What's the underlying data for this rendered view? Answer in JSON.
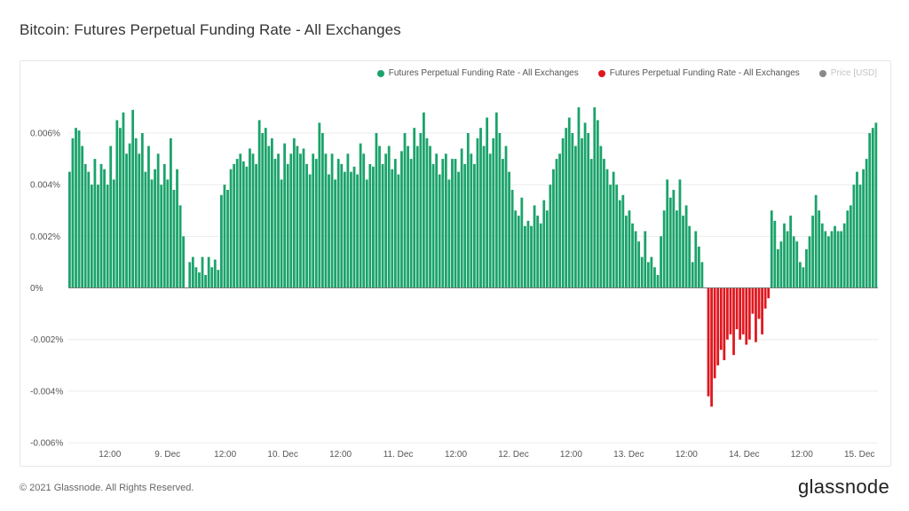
{
  "title": "Bitcoin: Futures Perpetual Funding Rate - All Exchanges",
  "legend": [
    {
      "label": "Futures Perpetual Funding Rate - All Exchanges",
      "color": "#1aa36a"
    },
    {
      "label": "Futures Perpetual Funding Rate - All Exchanges",
      "color": "#e0171f"
    },
    {
      "label": "Price [USD]",
      "color": "#8a8a8a"
    }
  ],
  "footer": {
    "copyright": "© 2021 Glassnode. All Rights Reserved.",
    "brand": "glassnode"
  },
  "chart_data": {
    "type": "bar",
    "title": "Bitcoin: Futures Perpetual Funding Rate - All Exchanges",
    "y_unit": "%",
    "ylim": [
      -0.0061,
      0.0071
    ],
    "y_ticks": [
      0.006,
      0.004,
      0.002,
      0,
      -0.002,
      -0.004,
      -0.006
    ],
    "y_tick_labels": [
      "0.006%",
      "0.004%",
      "0.002%",
      "0%",
      "-0.002%",
      "-0.004%",
      "-0.006%"
    ],
    "x_ticks": [
      {
        "t": 0.5,
        "label": "12:00"
      },
      {
        "t": 1.0,
        "label": "9. Dec"
      },
      {
        "t": 1.5,
        "label": "12:00"
      },
      {
        "t": 2.0,
        "label": "10. Dec"
      },
      {
        "t": 2.5,
        "label": "12:00"
      },
      {
        "t": 3.0,
        "label": "11. Dec"
      },
      {
        "t": 3.5,
        "label": "12:00"
      },
      {
        "t": 4.0,
        "label": "12. Dec"
      },
      {
        "t": 4.5,
        "label": "12:00"
      },
      {
        "t": 5.0,
        "label": "13. Dec"
      },
      {
        "t": 5.5,
        "label": "12:00"
      },
      {
        "t": 6.0,
        "label": "14. Dec"
      },
      {
        "t": 6.5,
        "label": "12:00"
      },
      {
        "t": 7.0,
        "label": "15. Dec"
      }
    ],
    "x_start": 0.14,
    "x_end": 7.16,
    "positive_color": "#1aa36a",
    "negative_color": "#e0171f",
    "grid": true,
    "legend_position": "top-right",
    "series": [
      {
        "name": "Futures Perpetual Funding Rate - All Exchanges",
        "values": [
          0.0045,
          0.0058,
          0.0062,
          0.0061,
          0.0055,
          0.0048,
          0.0045,
          0.004,
          0.005,
          0.004,
          0.0048,
          0.0046,
          0.004,
          0.0055,
          0.0042,
          0.0065,
          0.0062,
          0.0068,
          0.0052,
          0.0056,
          0.0069,
          0.0058,
          0.0052,
          0.006,
          0.0045,
          0.0055,
          0.0042,
          0.0046,
          0.0052,
          0.004,
          0.0048,
          0.0042,
          0.0058,
          0.0038,
          0.0046,
          0.0032,
          0.002,
          0.0,
          0.001,
          0.0012,
          0.0008,
          0.0006,
          0.0012,
          0.0005,
          0.0012,
          0.0008,
          0.0011,
          0.0007,
          0.0036,
          0.004,
          0.0038,
          0.0046,
          0.0048,
          0.005,
          0.0052,
          0.0049,
          0.0047,
          0.0054,
          0.0052,
          0.0048,
          0.0065,
          0.006,
          0.0062,
          0.0055,
          0.0058,
          0.005,
          0.0052,
          0.0042,
          0.0056,
          0.0048,
          0.0052,
          0.0058,
          0.0055,
          0.0052,
          0.0054,
          0.0048,
          0.0044,
          0.0052,
          0.005,
          0.0064,
          0.006,
          0.0052,
          0.0044,
          0.0052,
          0.0042,
          0.005,
          0.0048,
          0.0045,
          0.0052,
          0.0045,
          0.0047,
          0.0044,
          0.0056,
          0.0052,
          0.0042,
          0.0048,
          0.0047,
          0.006,
          0.0055,
          0.0048,
          0.0052,
          0.0055,
          0.0046,
          0.005,
          0.0044,
          0.0053,
          0.006,
          0.0055,
          0.005,
          0.0062,
          0.0055,
          0.006,
          0.0068,
          0.0058,
          0.0055,
          0.0048,
          0.0052,
          0.0044,
          0.005,
          0.0052,
          0.0042,
          0.005,
          0.005,
          0.0045,
          0.0054,
          0.0048,
          0.006,
          0.0052,
          0.0048,
          0.0058,
          0.0062,
          0.0055,
          0.0066,
          0.0052,
          0.0058,
          0.0068,
          0.006,
          0.005,
          0.0055,
          0.0045,
          0.0038,
          0.003,
          0.0028,
          0.0035,
          0.0024,
          0.0026,
          0.0024,
          0.0032,
          0.0028,
          0.0025,
          0.0034,
          0.003,
          0.004,
          0.0046,
          0.005,
          0.0052,
          0.0058,
          0.0062,
          0.0066,
          0.006,
          0.0055,
          0.007,
          0.0058,
          0.0064,
          0.006,
          0.005,
          0.007,
          0.0065,
          0.0055,
          0.005,
          0.0046,
          0.004,
          0.0045,
          0.004,
          0.0034,
          0.0036,
          0.0028,
          0.003,
          0.0025,
          0.0022,
          0.0018,
          0.0012,
          0.0022,
          0.001,
          0.0012,
          0.0008,
          0.0005,
          0.002,
          0.003,
          0.0042,
          0.0035,
          0.0038,
          0.003,
          0.0042,
          0.0028,
          0.0032,
          0.0024,
          0.001,
          0.0022,
          0.0016,
          0.001,
          0.0,
          -0.0042,
          -0.0046,
          -0.0035,
          -0.003,
          -0.0024,
          -0.0028,
          -0.002,
          -0.0018,
          -0.0026,
          -0.0016,
          -0.002,
          -0.0018,
          -0.0022,
          -0.002,
          -0.001,
          -0.0021,
          -0.0012,
          -0.0018,
          -0.0008,
          -0.0004,
          0.003,
          0.0026,
          0.0015,
          0.0018,
          0.0025,
          0.0022,
          0.0028,
          0.002,
          0.0018,
          0.001,
          0.0008,
          0.0015,
          0.002,
          0.0028,
          0.0036,
          0.003,
          0.0025,
          0.0022,
          0.002,
          0.0022,
          0.0024,
          0.0022,
          0.0022,
          0.0025,
          0.003,
          0.0032,
          0.004,
          0.0045,
          0.004,
          0.0046,
          0.005,
          0.006,
          0.0062,
          0.0064
        ]
      }
    ]
  }
}
